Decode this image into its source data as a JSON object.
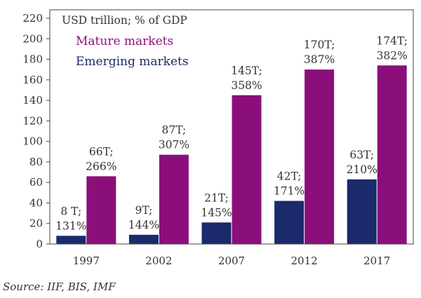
{
  "chart_data": {
    "type": "bar",
    "title": "USD trillion; % of GDP",
    "categories": [
      "1997",
      "2002",
      "2007",
      "2012",
      "2017"
    ],
    "series": [
      {
        "name": "Emerging markets",
        "color": "#1b2a6b",
        "values": [
          8,
          9,
          21,
          42,
          63
        ],
        "labels": [
          [
            "8 T;",
            "131%"
          ],
          [
            "9T;",
            "144%"
          ],
          [
            "21T;",
            "145%"
          ],
          [
            "42T;",
            "171%"
          ],
          [
            "63T;",
            "210%"
          ]
        ]
      },
      {
        "name": "Mature markets",
        "color": "#8b0f7a",
        "values": [
          66,
          87,
          145,
          170,
          174
        ],
        "labels": [
          [
            "66T;",
            "266%"
          ],
          [
            "87T;",
            "307%"
          ],
          [
            "145T;",
            "358%"
          ],
          [
            "170T;",
            "387%"
          ],
          [
            "174T;",
            "382%"
          ]
        ]
      }
    ],
    "ylim": [
      0,
      220
    ],
    "yticks": [
      0,
      20,
      40,
      60,
      80,
      100,
      120,
      140,
      160,
      180,
      200,
      220
    ],
    "legend_position": "top-left",
    "grid": false
  },
  "source": "Source: IIF, BIS, IMF"
}
